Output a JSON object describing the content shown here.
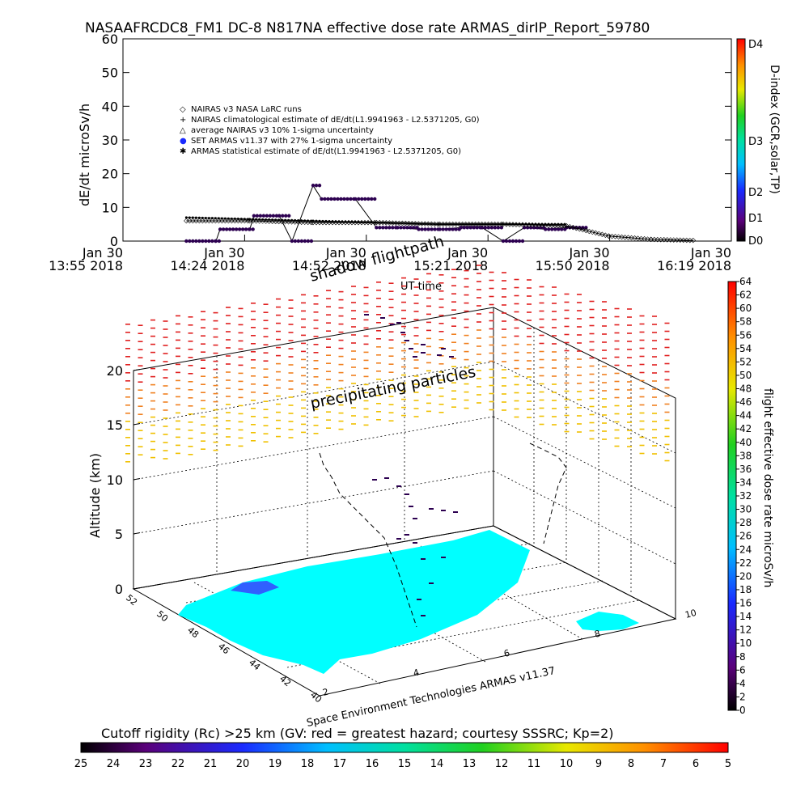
{
  "title": "NASAAFRCDC8_FM1 DC-8    N817NA effective dose rate ARMAS_dirIP_Report_59780",
  "top_chart": {
    "ylabel": "dE/dt microSv/h",
    "xlabel": "UT time",
    "yticks": [
      "0",
      "10",
      "20",
      "30",
      "40",
      "50",
      "60"
    ],
    "xticks": [
      {
        "l1": "Jan 30",
        "l2": "13:55 2018"
      },
      {
        "l1": "Jan 30",
        "l2": "14:24 2018"
      },
      {
        "l1": "Jan 30",
        "l2": "14:52 2018"
      },
      {
        "l1": "Jan 30",
        "l2": "15:21 2018"
      },
      {
        "l1": "Jan 30",
        "l2": "15:50 2018"
      },
      {
        "l1": "Jan 30",
        "l2": "16:19 2018"
      }
    ],
    "legend": [
      {
        "symbol": "◇",
        "label": "NAIRAS v3 NASA LaRC runs"
      },
      {
        "symbol": "+",
        "label": "NAIRAS climatological estimate of dE/dt(L1.9941963 - L2.5371205, G0)"
      },
      {
        "symbol": "△",
        "label": "average NAIRAS v3 10% 1-sigma uncertainty"
      },
      {
        "symbol": "●",
        "label": "SET ARMAS v11.37 with 27% 1-sigma uncertainty"
      },
      {
        "symbol": "✱",
        "label": "ARMAS statistical estimate of dE/dt(L1.9941963 - L2.5371205, G0)"
      }
    ],
    "dindex_label": "D-index (GCR,solar,TP)",
    "dindex_ticks": [
      "D0",
      "D1",
      "D2",
      "D3",
      "D4"
    ]
  },
  "chart_data": [
    {
      "type": "line",
      "title": "NASAAFRCDC8_FM1 DC-8    N817NA effective dose rate ARMAS_dirIP_Report_59780",
      "xlabel": "UT time",
      "ylabel": "dE/dt microSv/h",
      "ylim": [
        0,
        60
      ],
      "xlim": [
        "13:55",
        "16:19"
      ],
      "series": [
        {
          "name": "SET ARMAS v11.37 with 27% 1-sigma uncertainty",
          "x": [
            "14:10",
            "14:17",
            "14:18",
            "14:25",
            "14:26",
            "14:32",
            "14:35",
            "14:40",
            "14:42",
            "14:50",
            "14:55",
            "15:00",
            "15:05",
            "15:10",
            "15:15",
            "15:20",
            "15:25",
            "15:30",
            "15:35",
            "15:40",
            "15:45"
          ],
          "y": [
            0,
            0,
            3.5,
            3.5,
            7.5,
            7.5,
            0,
            16.5,
            12.5,
            12.5,
            4,
            4,
            3.5,
            3.5,
            4,
            4,
            0,
            4,
            3.5,
            4,
            3.5
          ]
        },
        {
          "name": "NAIRAS v3 NASA LaRC runs",
          "x": [
            "14:10",
            "14:25",
            "14:40",
            "14:55",
            "15:10",
            "15:25",
            "15:40",
            "15:50",
            "16:00",
            "16:10"
          ],
          "y": [
            6,
            6,
            5.5,
            5.5,
            5,
            5,
            4.5,
            1.5,
            0.5,
            0.2
          ]
        },
        {
          "name": "ARMAS statistical estimate of dE/dt(L1.9941963 - L2.5371205, G0)",
          "x": [
            "14:10",
            "14:25",
            "14:40",
            "14:55",
            "15:10",
            "15:25",
            "15:40"
          ],
          "y": [
            7,
            6.5,
            6,
            5.5,
            5,
            5,
            5
          ]
        }
      ]
    },
    {
      "type": "scatter",
      "subtype": "3d flight path over map",
      "zlabel": "Altitude (km)",
      "zticks": [
        "0",
        "5",
        "10",
        "15",
        "20"
      ],
      "y_ticks": [
        "40",
        "42",
        "44",
        "46",
        "48",
        "50",
        "52"
      ],
      "x_ticks": [
        "2",
        "4",
        "6",
        "8",
        "10"
      ],
      "colorbar_label": "flight effective dose rate microSv/h",
      "colorbar_ticks": [
        "0",
        "2",
        "4",
        "6",
        "8",
        "10",
        "12",
        "14",
        "16",
        "18",
        "20",
        "22",
        "24",
        "26",
        "28",
        "30",
        "32",
        "34",
        "36",
        "38",
        "40",
        "42",
        "44",
        "46",
        "48",
        "50",
        "52",
        "54",
        "56",
        "58",
        "60",
        "62",
        "64"
      ],
      "annotations": [
        "shadow flightpath",
        "precipitating particles",
        "UT time"
      ],
      "credit": "Space Environment Technologies ARMAS v11.37"
    }
  ],
  "bottom_bar": {
    "title": "Cutoff rigidity (Rc) >25 km (GV: red = greatest hazard; courtesy SSSRC; Kp=2)",
    "ticks": [
      "25",
      "24",
      "23",
      "22",
      "21",
      "20",
      "19",
      "18",
      "17",
      "16",
      "15",
      "14",
      "13",
      "12",
      "11",
      "10",
      "9",
      "8",
      "7",
      "6",
      "5"
    ]
  },
  "colors": {
    "land": "#00ffff",
    "dose_dark": "#2c0050",
    "red": "#ff2020"
  }
}
